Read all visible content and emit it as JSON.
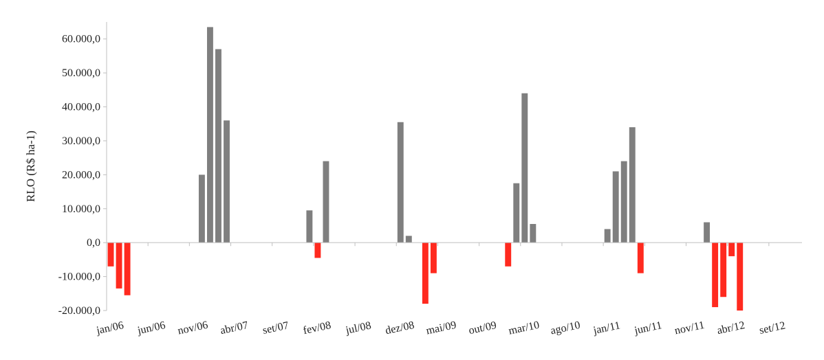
{
  "chart_data": {
    "type": "bar",
    "title": "",
    "xlabel": "",
    "ylabel": "RLO (R$ ha-1)",
    "ylim": [
      -20000,
      65000
    ],
    "yticks": [
      60000,
      50000,
      40000,
      30000,
      20000,
      10000,
      0,
      -10000,
      -20000
    ],
    "ytick_labels": [
      "60.000,0",
      "50.000,0",
      "40.000,0",
      "30.000,0",
      "20.000,0",
      "10.000,0",
      "0,0",
      "-10.000,0",
      "-20.000,0"
    ],
    "xtick_labels": [
      "jan/06",
      "jun/06",
      "nov/06",
      "abr/07",
      "set/07",
      "fev/08",
      "jul/08",
      "dez/08",
      "mai/09",
      "out/09",
      "mar/10",
      "ago/10",
      "jan/11",
      "jun/11",
      "nov/11",
      "abr/12",
      "set/12"
    ],
    "grid": false,
    "legend": "none",
    "colors": {
      "positive": "#7f7f7f",
      "negative": "#ff2a1f",
      "axis": "#bfbfbf"
    },
    "categories": [
      "jan/06",
      "fev/06",
      "mar/06",
      "abr/06",
      "mai/06",
      "jun/06",
      "jul/06",
      "ago/06",
      "set/06",
      "out/06",
      "nov/06",
      "dez/06",
      "jan/07",
      "fev/07",
      "mar/07",
      "abr/07",
      "mai/07",
      "jun/07",
      "jul/07",
      "ago/07",
      "set/07",
      "out/07",
      "nov/07",
      "dez/07",
      "jan/08",
      "fev/08",
      "mar/08",
      "abr/08",
      "mai/08",
      "jun/08",
      "jul/08",
      "ago/08",
      "set/08",
      "out/08",
      "nov/08",
      "dez/08",
      "jan/09",
      "fev/09",
      "mar/09",
      "abr/09",
      "mai/09",
      "jun/09",
      "jul/09",
      "ago/09",
      "set/09",
      "out/09",
      "nov/09",
      "dez/09",
      "jan/10",
      "fev/10",
      "mar/10",
      "abr/10",
      "mai/10",
      "jun/10",
      "jul/10",
      "ago/10",
      "set/10",
      "out/10",
      "nov/10",
      "dez/10",
      "jan/11",
      "fev/11",
      "mar/11",
      "abr/11",
      "mai/11",
      "jun/11",
      "jul/11",
      "ago/11",
      "set/11",
      "out/11",
      "nov/11",
      "dez/11",
      "jan/12",
      "fev/12",
      "mar/12",
      "abr/12",
      "mai/12",
      "jun/12",
      "jul/12",
      "ago/12",
      "set/12",
      "out/12",
      "nov/12",
      "dez/12"
    ],
    "values": [
      -7000,
      -13500,
      -15500,
      0,
      0,
      0,
      0,
      0,
      0,
      0,
      0,
      20000,
      63500,
      57000,
      36000,
      0,
      0,
      0,
      0,
      0,
      0,
      0,
      0,
      0,
      9500,
      -4500,
      24000,
      0,
      0,
      0,
      0,
      0,
      0,
      0,
      0,
      35500,
      2000,
      0,
      -18000,
      -9000,
      0,
      0,
      0,
      0,
      0,
      0,
      0,
      0,
      -7000,
      17500,
      44000,
      5500,
      0,
      0,
      0,
      0,
      0,
      0,
      0,
      0,
      4000,
      21000,
      24000,
      34000,
      -9000,
      0,
      0,
      0,
      0,
      0,
      0,
      0,
      6000,
      -19000,
      -16000,
      -4000,
      -20000,
      0,
      0,
      0,
      0,
      0,
      0,
      0
    ]
  }
}
